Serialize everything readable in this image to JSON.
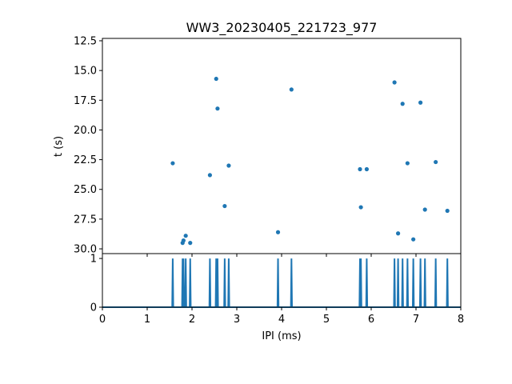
{
  "chart_data": [
    {
      "type": "scatter",
      "title": "WW3_20230405_221723_977",
      "ylabel": "t (s)",
      "xlim": [
        0,
        8
      ],
      "ylim": [
        30.4,
        12.3
      ],
      "y_inverted": true,
      "y_ticks": [
        12.5,
        15.0,
        17.5,
        20.0,
        22.5,
        25.0,
        27.5,
        30.0
      ],
      "y_tick_labels": [
        "12.5",
        "15.0",
        "17.5",
        "20.0",
        "22.5",
        "25.0",
        "27.5",
        "30.0"
      ],
      "marker_color": "#1f77b4",
      "grid": false,
      "points": [
        {
          "x": 1.57,
          "y": 22.8
        },
        {
          "x": 1.79,
          "y": 29.5
        },
        {
          "x": 1.81,
          "y": 29.3
        },
        {
          "x": 1.86,
          "y": 28.9
        },
        {
          "x": 1.96,
          "y": 29.5
        },
        {
          "x": 2.4,
          "y": 23.8
        },
        {
          "x": 2.54,
          "y": 15.7
        },
        {
          "x": 2.57,
          "y": 18.2
        },
        {
          "x": 2.73,
          "y": 26.4
        },
        {
          "x": 2.82,
          "y": 23.0
        },
        {
          "x": 3.92,
          "y": 28.6
        },
        {
          "x": 4.22,
          "y": 16.6
        },
        {
          "x": 5.75,
          "y": 23.3
        },
        {
          "x": 5.77,
          "y": 26.5
        },
        {
          "x": 5.9,
          "y": 23.3
        },
        {
          "x": 6.52,
          "y": 16.0
        },
        {
          "x": 6.6,
          "y": 28.7
        },
        {
          "x": 6.7,
          "y": 17.8
        },
        {
          "x": 6.81,
          "y": 22.8
        },
        {
          "x": 6.94,
          "y": 29.2
        },
        {
          "x": 7.1,
          "y": 17.7
        },
        {
          "x": 7.2,
          "y": 26.7
        },
        {
          "x": 7.44,
          "y": 22.7
        },
        {
          "x": 7.7,
          "y": 26.8
        }
      ]
    },
    {
      "type": "line",
      "xlabel": "IPI (ms)",
      "xlim": [
        0,
        8
      ],
      "ylim": [
        0,
        1.1
      ],
      "x_ticks": [
        0,
        1,
        2,
        3,
        4,
        5,
        6,
        7,
        8
      ],
      "x_tick_labels": [
        "0",
        "1",
        "2",
        "3",
        "4",
        "5",
        "6",
        "7",
        "8"
      ],
      "y_ticks": [
        0,
        1
      ],
      "y_tick_labels": [
        "0",
        "1"
      ],
      "line_color": "#1f77b4",
      "grid": false,
      "pulse_x": [
        1.57,
        1.79,
        1.81,
        1.86,
        1.96,
        2.4,
        2.54,
        2.57,
        2.73,
        2.82,
        3.92,
        4.22,
        5.75,
        5.77,
        5.9,
        6.52,
        6.6,
        6.7,
        6.81,
        6.94,
        7.1,
        7.2,
        7.44,
        7.7
      ],
      "pulse_value": 1
    }
  ]
}
